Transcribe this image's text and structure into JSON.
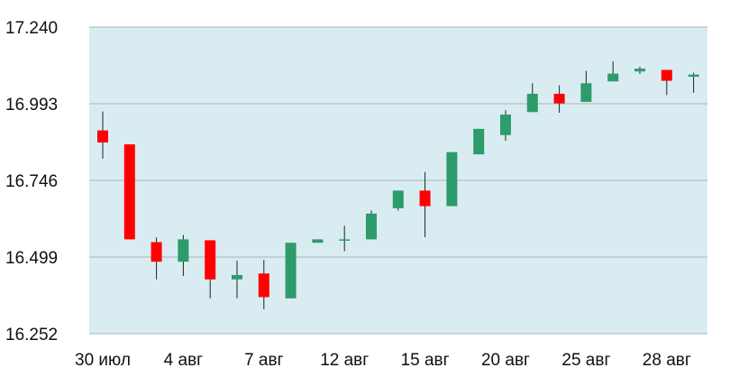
{
  "chart_data": {
    "type": "candlestick",
    "title": "",
    "xlabel": "",
    "ylabel": "",
    "ylim": [
      16.252,
      17.24
    ],
    "y_ticks": [
      "17.240",
      "16.993",
      "16.746",
      "16.499",
      "16.252"
    ],
    "x_ticks": [
      {
        "label": "30 июл",
        "index": 0
      },
      {
        "label": "4 авг",
        "index": 3
      },
      {
        "label": "7 авг",
        "index": 6
      },
      {
        "label": "12 авг",
        "index": 9
      },
      {
        "label": "15 авг",
        "index": 12
      },
      {
        "label": "20 авг",
        "index": 15
      },
      {
        "label": "25 авг",
        "index": 18
      },
      {
        "label": "28 авг",
        "index": 21
      }
    ],
    "grid": true,
    "colors": {
      "plot_background": "#d9ecf2",
      "gridline": "#aab4c0",
      "up": "#2e9b6a",
      "down": "#ff0000",
      "wick": "#222222"
    },
    "candles": [
      {
        "open": 16.907,
        "close": 16.868,
        "high": 16.968,
        "low": 16.816
      },
      {
        "open": 16.862,
        "close": 16.556,
        "high": 16.862,
        "low": 16.556
      },
      {
        "open": 16.547,
        "close": 16.484,
        "high": 16.562,
        "low": 16.427
      },
      {
        "open": 16.484,
        "close": 16.556,
        "high": 16.57,
        "low": 16.438
      },
      {
        "open": 16.553,
        "close": 16.427,
        "high": 16.553,
        "low": 16.366
      },
      {
        "open": 16.427,
        "close": 16.441,
        "high": 16.487,
        "low": 16.366
      },
      {
        "open": 16.446,
        "close": 16.37,
        "high": 16.49,
        "low": 16.331
      },
      {
        "open": 16.366,
        "close": 16.545,
        "high": 16.545,
        "low": 16.366
      },
      {
        "open": 16.545,
        "close": 16.556,
        "high": 16.556,
        "low": 16.545
      },
      {
        "open": 16.556,
        "close": 16.556,
        "high": 16.6,
        "low": 16.518
      },
      {
        "open": 16.556,
        "close": 16.639,
        "high": 16.649,
        "low": 16.556
      },
      {
        "open": 16.656,
        "close": 16.713,
        "high": 16.713,
        "low": 16.649
      },
      {
        "open": 16.713,
        "close": 16.663,
        "high": 16.773,
        "low": 16.563
      },
      {
        "open": 16.663,
        "close": 16.837,
        "high": 16.837,
        "low": 16.663
      },
      {
        "open": 16.83,
        "close": 16.912,
        "high": 16.912,
        "low": 16.83
      },
      {
        "open": 16.892,
        "close": 16.958,
        "high": 16.972,
        "low": 16.874
      },
      {
        "open": 16.966,
        "close": 17.025,
        "high": 17.059,
        "low": 16.966
      },
      {
        "open": 17.025,
        "close": 16.994,
        "high": 17.052,
        "low": 16.964
      },
      {
        "open": 16.999,
        "close": 17.059,
        "high": 17.099,
        "low": 16.999
      },
      {
        "open": 17.065,
        "close": 17.09,
        "high": 17.129,
        "low": 17.065
      },
      {
        "open": 17.097,
        "close": 17.106,
        "high": 17.112,
        "low": 17.089
      },
      {
        "open": 17.102,
        "close": 17.067,
        "high": 17.102,
        "low": 17.021
      },
      {
        "open": 17.08,
        "close": 17.087,
        "high": 17.093,
        "low": 17.028
      }
    ]
  }
}
